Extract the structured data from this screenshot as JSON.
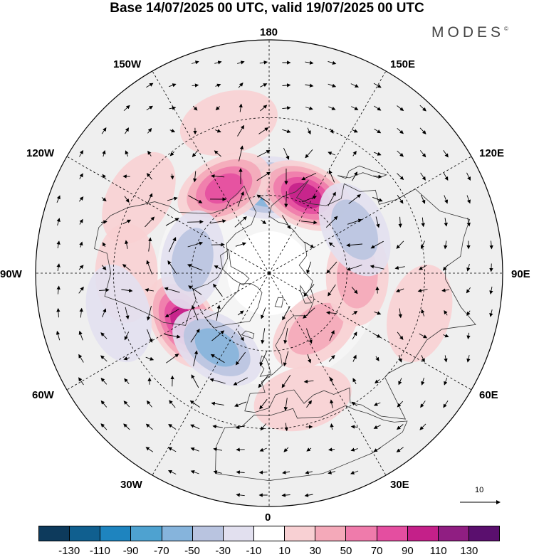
{
  "title": "Base 14/07/2025 00 UTC, valid 19/07/2025 00 UTC",
  "brand": "MODES",
  "brand_mark": "©",
  "longitude_labels": [
    "180",
    "150E",
    "120E",
    "90E",
    "60E",
    "30E",
    "0",
    "30W",
    "60W",
    "90W",
    "120W",
    "150W"
  ],
  "reference_vector": {
    "label": "10"
  },
  "colorbar": {
    "labels": [
      "-130",
      "-110",
      "-90",
      "-70",
      "-50",
      "-30",
      "-10",
      "10",
      "30",
      "50",
      "70",
      "90",
      "110",
      "130"
    ],
    "colors": [
      "#0d3a5c",
      "#105f8f",
      "#1e84bf",
      "#4ea2d0",
      "#86b4dc",
      "#b9c4e0",
      "#e2e0ef",
      "#ffffff",
      "#f8d0d3",
      "#f4a9b9",
      "#ef7bab",
      "#e44ea0",
      "#c42089",
      "#901e82",
      "#5a0f6e"
    ]
  },
  "anomalies": [
    {
      "lon": 180,
      "lat": 57,
      "value": -82
    },
    {
      "lon": 155,
      "lat": 57,
      "value": 96
    },
    {
      "lon": -152,
      "lat": 53,
      "value": 74
    },
    {
      "lon": -60,
      "lat": 52,
      "value": 92
    },
    {
      "lon": -35,
      "lat": 55,
      "value": -68
    },
    {
      "lon": 40,
      "lat": 62,
      "value": 48
    },
    {
      "lon": 88,
      "lat": 56,
      "value": 42
    },
    {
      "lon": 117,
      "lat": 53,
      "value": -36
    },
    {
      "lon": -100,
      "lat": 60,
      "value": -32
    },
    {
      "lon": -90,
      "lat": 35,
      "value": 26
    },
    {
      "lon": -120,
      "lat": 32,
      "value": 24
    },
    {
      "lon": 15,
      "lat": 40,
      "value": 28
    },
    {
      "lon": 75,
      "lat": 30,
      "value": 22
    },
    {
      "lon": -75,
      "lat": 30,
      "value": -20
    },
    {
      "lon": -165,
      "lat": 30,
      "value": 16
    }
  ]
}
